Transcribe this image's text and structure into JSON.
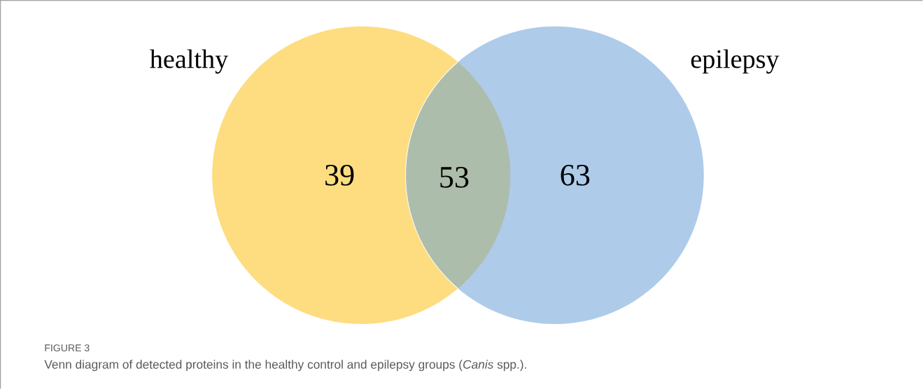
{
  "chart_data": {
    "type": "other",
    "categories": [
      "healthy",
      null,
      "epilepsy"
    ],
    "values": [
      39,
      53,
      63
    ],
    "colors": [
      "#fddd80",
      "#adbdab",
      "#aecbe9"
    ],
    "data_labels": true,
    "annotations": [
      "FIGURE 3",
      "Venn diagram of detected proteins in the healthy control and epilepsy groups (*Canis* spp.)."
    ]
  }
}
